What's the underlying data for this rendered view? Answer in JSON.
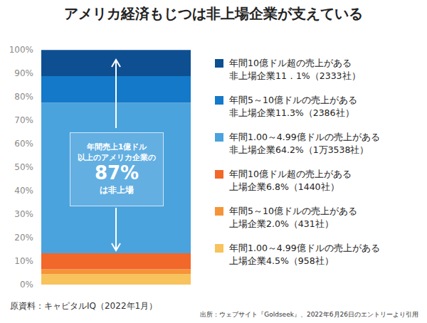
{
  "chart_data": {
    "type": "bar",
    "title": "アメリカ経済もじつは非上場企業が支えている",
    "stacked": true,
    "grid": false,
    "legend": "right",
    "tick_labels": "y",
    "ylim": [
      0,
      100
    ],
    "yticks": [
      {
        "value": 0,
        "label": "0%"
      },
      {
        "value": 10,
        "label": "10%"
      },
      {
        "value": 20,
        "label": "20%"
      },
      {
        "value": 30,
        "label": "30%"
      },
      {
        "value": 40,
        "label": "40%"
      },
      {
        "value": 50,
        "label": "50%"
      },
      {
        "value": 60,
        "label": "60%"
      },
      {
        "value": 70,
        "label": "70%"
      },
      {
        "value": 80,
        "label": "80%"
      },
      {
        "value": 90,
        "label": "90%"
      },
      {
        "value": 100,
        "label": "100%"
      }
    ],
    "series": [
      {
        "name": "年間10億ドル超の売上がある\n非上場企業11．1%（2333社）",
        "color": "#0e4f92",
        "values": [
          11.1
        ]
      },
      {
        "name": "年間5～10億ドルの売上がある\n非上場企業11.3%（2386社）",
        "color": "#1479c9",
        "values": [
          11.3
        ]
      },
      {
        "name": "年間1.00～4.99億ドルの売上がある\n非上場企業64.2%（1万3538社）",
        "color": "#4ba3dd",
        "values": [
          64.2
        ]
      },
      {
        "name": "年間10億ドル超の売上がある\n上場企業6.8%（1440社）",
        "color": "#f2672a",
        "values": [
          6.8
        ]
      },
      {
        "name": "年間5～10億ドルの売上がある\n上場企業2.0%（431社）",
        "color": "#f59538",
        "values": [
          2.0
        ]
      },
      {
        "name": "年間1.00～4.99億ドルの売上がある\n上場企業4.5%（958社）",
        "color": "#f8c25c",
        "values": [
          4.5
        ]
      }
    ],
    "annotation": [
      "年間売上1億ドル\n以上のアメリカ企業の",
      "87%",
      "は非上場"
    ],
    "source": "原資料：キャピタルIQ（2022年1月）",
    "note": "出所：ウェブサイト『Goldseek』、2022年6月26日のエントリーより引用"
  }
}
